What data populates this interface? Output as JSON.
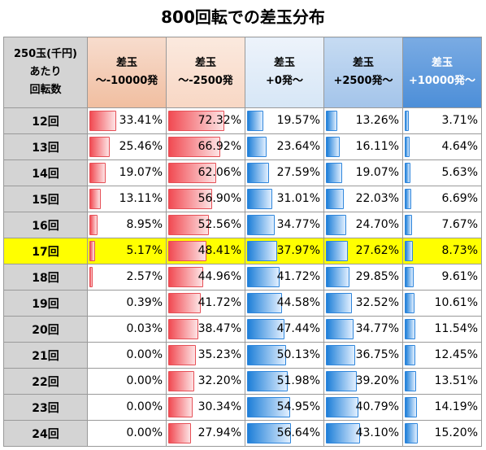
{
  "title": "800回転での差玉分布",
  "corner_lines": [
    "250玉(千円)",
    "あたり",
    "回転数"
  ],
  "columns": [
    {
      "line1": "差玉",
      "line2": "～-10000発"
    },
    {
      "line1": "差玉",
      "line2": "～-2500発"
    },
    {
      "line1": "差玉",
      "line2": "+0発～"
    },
    {
      "line1": "差玉",
      "line2": "+2500発～"
    },
    {
      "line1": "差玉",
      "line2": "+10000発～"
    }
  ],
  "bar_colors": [
    "red",
    "red",
    "blue",
    "blue",
    "blue"
  ],
  "highlight_row_label": "17回",
  "highlight_color": "#ffff00",
  "rows": [
    {
      "label": "12回",
      "values": [
        "33.41%",
        "72.32%",
        "19.57%",
        "13.26%",
        "3.71%"
      ]
    },
    {
      "label": "13回",
      "values": [
        "25.46%",
        "66.92%",
        "23.64%",
        "16.11%",
        "4.64%"
      ]
    },
    {
      "label": "14回",
      "values": [
        "19.07%",
        "62.06%",
        "27.59%",
        "19.07%",
        "5.63%"
      ]
    },
    {
      "label": "15回",
      "values": [
        "13.11%",
        "56.90%",
        "31.01%",
        "22.03%",
        "6.69%"
      ]
    },
    {
      "label": "16回",
      "values": [
        "8.95%",
        "52.56%",
        "34.77%",
        "24.70%",
        "7.67%"
      ]
    },
    {
      "label": "17回",
      "values": [
        "5.17%",
        "48.41%",
        "37.97%",
        "27.62%",
        "8.73%"
      ]
    },
    {
      "label": "18回",
      "values": [
        "2.57%",
        "44.96%",
        "41.72%",
        "29.85%",
        "9.61%"
      ]
    },
    {
      "label": "19回",
      "values": [
        "0.39%",
        "41.72%",
        "44.58%",
        "32.52%",
        "10.61%"
      ]
    },
    {
      "label": "20回",
      "values": [
        "0.03%",
        "38.47%",
        "47.44%",
        "34.77%",
        "11.54%"
      ]
    },
    {
      "label": "21回",
      "values": [
        "0.00%",
        "35.23%",
        "50.13%",
        "36.75%",
        "12.45%"
      ]
    },
    {
      "label": "22回",
      "values": [
        "0.00%",
        "32.20%",
        "51.98%",
        "39.20%",
        "13.51%"
      ]
    },
    {
      "label": "23回",
      "values": [
        "0.00%",
        "30.34%",
        "54.95%",
        "40.79%",
        "14.19%"
      ]
    },
    {
      "label": "24回",
      "values": [
        "0.00%",
        "27.94%",
        "56.64%",
        "43.10%",
        "15.20%"
      ]
    }
  ]
}
